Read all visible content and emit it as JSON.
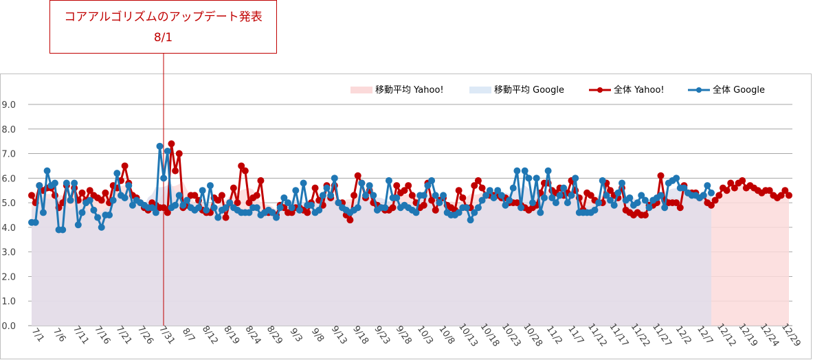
{
  "callout": {
    "title": "コアアルゴリズムのアップデート発表",
    "date": "8/1"
  },
  "chart_data": {
    "type": "line",
    "title": "",
    "xlabel": "",
    "ylabel": "",
    "ylim": [
      0,
      9
    ],
    "y_ticks": [
      "0.0",
      "1.0",
      "2.0",
      "3.0",
      "4.0",
      "5.0",
      "6.0",
      "7.0",
      "8.0",
      "9.0"
    ],
    "grid": true,
    "legend_position": "top-right",
    "annotation_date": "8/1",
    "x_tick_labels": [
      "7/1",
      "7/6",
      "7/11",
      "7/16",
      "7/21",
      "7/26",
      "7/31",
      "8/7",
      "8/12",
      "8/19",
      "8/24",
      "8/29",
      "9/3",
      "9/8",
      "9/13",
      "9/18",
      "9/23",
      "9/28",
      "10/3",
      "10/8",
      "10/13",
      "10/18",
      "10/23",
      "10/28",
      "11/2",
      "11/7",
      "11/12",
      "11/17",
      "11/22",
      "11/27",
      "12/2",
      "12/7",
      "12/12",
      "12/19",
      "12/24",
      "12/29"
    ],
    "series": [
      {
        "name": "移動平均 Yahoo!",
        "type": "area",
        "color": "#fbdada"
      },
      {
        "name": "移動平均 Google",
        "type": "area",
        "color": "#dde9f6"
      },
      {
        "name": "全体 Yahoo!",
        "type": "line",
        "color": "#c00000",
        "values": [
          5.3,
          5.0,
          5.7,
          5.5,
          5.6,
          5.6,
          5.3,
          4.8,
          5.0,
          5.7,
          5.1,
          5.6,
          5.1,
          5.4,
          5.1,
          5.5,
          5.3,
          5.2,
          5.1,
          5.4,
          5.0,
          5.7,
          5.6,
          5.9,
          6.5,
          5.8,
          5.3,
          5.2,
          5.0,
          4.8,
          4.7,
          5.0,
          4.9,
          4.8,
          4.8,
          4.6,
          7.4,
          6.3,
          7.0,
          4.8,
          4.9,
          5.3,
          5.3,
          5.1,
          4.7,
          4.6,
          4.6,
          5.2,
          5.1,
          5.3,
          4.4,
          5.0,
          5.6,
          5.0,
          6.5,
          6.3,
          5.0,
          5.2,
          5.3,
          5.9,
          4.6,
          4.6,
          4.6,
          4.5,
          4.9,
          4.8,
          4.6,
          4.6,
          4.8,
          4.8,
          4.7,
          4.6,
          5.0,
          5.6,
          5.1,
          4.9,
          5.7,
          5.2,
          5.7,
          5.0,
          5.0,
          4.5,
          4.3,
          5.3,
          6.1,
          5.8,
          5.2,
          5.5,
          5.0,
          4.9,
          4.8,
          4.7,
          4.7,
          4.8,
          5.7,
          5.4,
          5.5,
          5.7,
          5.3,
          5.0,
          4.8,
          4.9,
          5.8,
          5.1,
          4.7,
          5.1,
          5.2,
          4.9,
          4.8,
          4.7,
          5.5,
          5.2,
          4.8,
          4.8,
          5.7,
          5.9,
          5.6,
          5.3,
          5.3,
          5.3,
          5.3,
          5.2,
          5.2,
          5.0,
          5.0,
          5.0,
          4.9,
          4.8,
          4.7,
          4.8,
          4.9,
          5.4,
          5.8,
          5.8,
          5.5,
          5.4,
          5.6,
          5.3,
          5.4,
          5.9,
          5.5,
          5.2,
          4.7,
          5.4,
          5.3,
          5.1,
          5.0,
          5.0,
          5.8,
          5.5,
          5.3,
          5.2,
          5.6,
          4.7,
          4.6,
          4.5,
          4.6,
          4.5,
          4.5,
          4.9,
          4.9,
          5.0,
          6.1,
          5.1,
          5.0,
          5.0,
          5.0,
          4.8,
          5.7,
          5.4,
          5.4,
          5.4,
          5.2,
          5.3,
          5.0,
          4.9,
          5.1,
          5.3,
          5.6,
          5.5,
          5.8,
          5.6,
          5.8,
          5.9,
          5.6,
          5.7,
          5.6,
          5.5,
          5.4,
          5.5,
          5.5,
          5.3,
          5.2,
          5.3,
          5.5,
          5.3
        ]
      },
      {
        "name": "全体 Google",
        "type": "line",
        "color": "#1f77b4",
        "values": [
          4.2,
          4.2,
          5.7,
          4.6,
          6.3,
          5.7,
          5.8,
          3.9,
          3.9,
          5.8,
          5.1,
          5.8,
          4.1,
          4.6,
          5.0,
          5.1,
          4.7,
          4.4,
          4.0,
          4.5,
          4.5,
          5.1,
          6.2,
          5.3,
          5.2,
          5.7,
          4.9,
          5.1,
          5.0,
          4.9,
          4.8,
          4.8,
          4.6,
          7.3,
          6.0,
          7.1,
          4.8,
          4.9,
          5.3,
          4.9,
          5.1,
          4.8,
          4.7,
          4.8,
          5.5,
          4.7,
          5.7,
          4.8,
          4.4,
          4.7,
          4.8,
          5.0,
          4.8,
          4.7,
          4.6,
          4.6,
          4.6,
          4.8,
          4.8,
          4.5,
          4.6,
          4.7,
          4.6,
          4.4,
          4.8,
          5.2,
          5.0,
          4.8,
          5.5,
          4.7,
          5.8,
          4.9,
          4.9,
          4.6,
          4.7,
          5.3,
          5.6,
          5.3,
          6.0,
          5.0,
          4.8,
          4.7,
          4.6,
          4.7,
          4.8,
          5.8,
          5.3,
          5.7,
          5.3,
          4.7,
          4.8,
          4.8,
          5.9,
          5.2,
          5.2,
          4.8,
          4.9,
          4.8,
          4.7,
          4.6,
          5.3,
          5.3,
          5.7,
          5.9,
          5.3,
          5.0,
          5.3,
          4.6,
          4.5,
          4.5,
          4.6,
          4.8,
          4.8,
          4.3,
          4.6,
          4.8,
          5.1,
          5.3,
          5.5,
          5.2,
          5.5,
          5.3,
          4.9,
          5.1,
          5.6,
          6.3,
          4.8,
          6.3,
          6.0,
          5.0,
          6.0,
          4.6,
          5.2,
          6.3,
          5.2,
          5.0,
          5.3,
          5.6,
          5.0,
          5.3,
          6.0,
          4.6,
          4.6,
          4.6,
          4.6,
          4.7,
          5.0,
          5.9,
          5.3,
          5.1,
          4.9,
          5.4,
          5.8,
          5.1,
          5.2,
          4.9,
          5.0,
          5.3,
          5.1,
          4.8,
          5.1,
          5.2,
          5.3,
          4.8,
          5.8,
          5.9,
          6.0,
          5.6,
          5.6,
          5.4,
          5.3,
          5.3,
          5.2,
          5.3,
          5.7,
          5.4
        ]
      }
    ]
  }
}
